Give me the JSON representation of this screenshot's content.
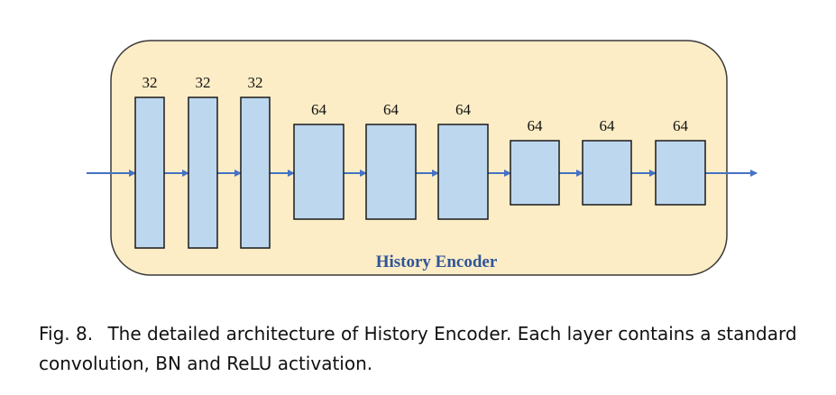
{
  "diagram": {
    "encoder_label": "History Encoder",
    "layers": [
      {
        "channels": "32"
      },
      {
        "channels": "32"
      },
      {
        "channels": "32"
      },
      {
        "channels": "64"
      },
      {
        "channels": "64"
      },
      {
        "channels": "64"
      },
      {
        "channels": "64"
      },
      {
        "channels": "64"
      },
      {
        "channels": "64"
      }
    ],
    "colors": {
      "encoder_fill": "#FDEDC6",
      "encoder_border": "#3A3A3A",
      "layer_fill": "#BDD7EE",
      "layer_border": "#1A1A1A",
      "arrow": "#4472C4",
      "label": "#2F5597"
    }
  },
  "caption": {
    "prefix": "Fig. 8.",
    "text": "The detailed architecture of History Encoder. Each layer contains a standard convolution, BN and ReLU activation."
  }
}
